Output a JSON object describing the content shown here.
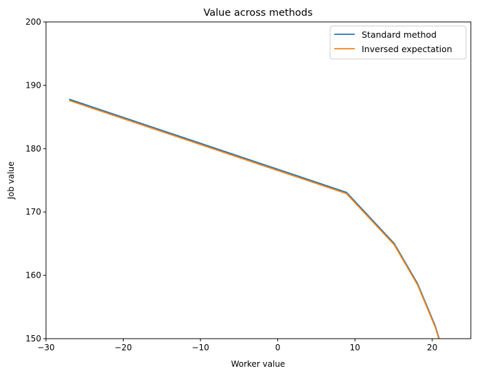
{
  "chart_data": {
    "type": "line",
    "title": "Value across methods",
    "xlabel": "Worker value",
    "ylabel": "Job value",
    "xlim": [
      -30,
      25
    ],
    "ylim": [
      150,
      200
    ],
    "xticks": [
      -30,
      -20,
      -10,
      0,
      10,
      20
    ],
    "xtick_labels": [
      "−30",
      "−20",
      "−10",
      "0",
      "10",
      "20"
    ],
    "yticks": [
      150,
      160,
      170,
      180,
      190,
      200
    ],
    "ytick_labels": [
      "150",
      "160",
      "170",
      "180",
      "190",
      "200"
    ],
    "grid": false,
    "legend_position": "top-right",
    "series": [
      {
        "name": "Standard method",
        "color": "#1f77b4",
        "x": [
          -27.0,
          8.9,
          15.1,
          18.1,
          20.4,
          21.1
        ],
        "y": [
          187.8,
          173.1,
          165.0,
          158.7,
          152.0,
          149.2
        ]
      },
      {
        "name": "Inversed expectation",
        "color": "#ff7f0e",
        "x": [
          -27.0,
          8.9,
          15.1,
          18.1,
          20.4,
          21.1
        ],
        "y": [
          187.6,
          172.9,
          164.8,
          158.5,
          151.8,
          149.0
        ]
      }
    ]
  }
}
